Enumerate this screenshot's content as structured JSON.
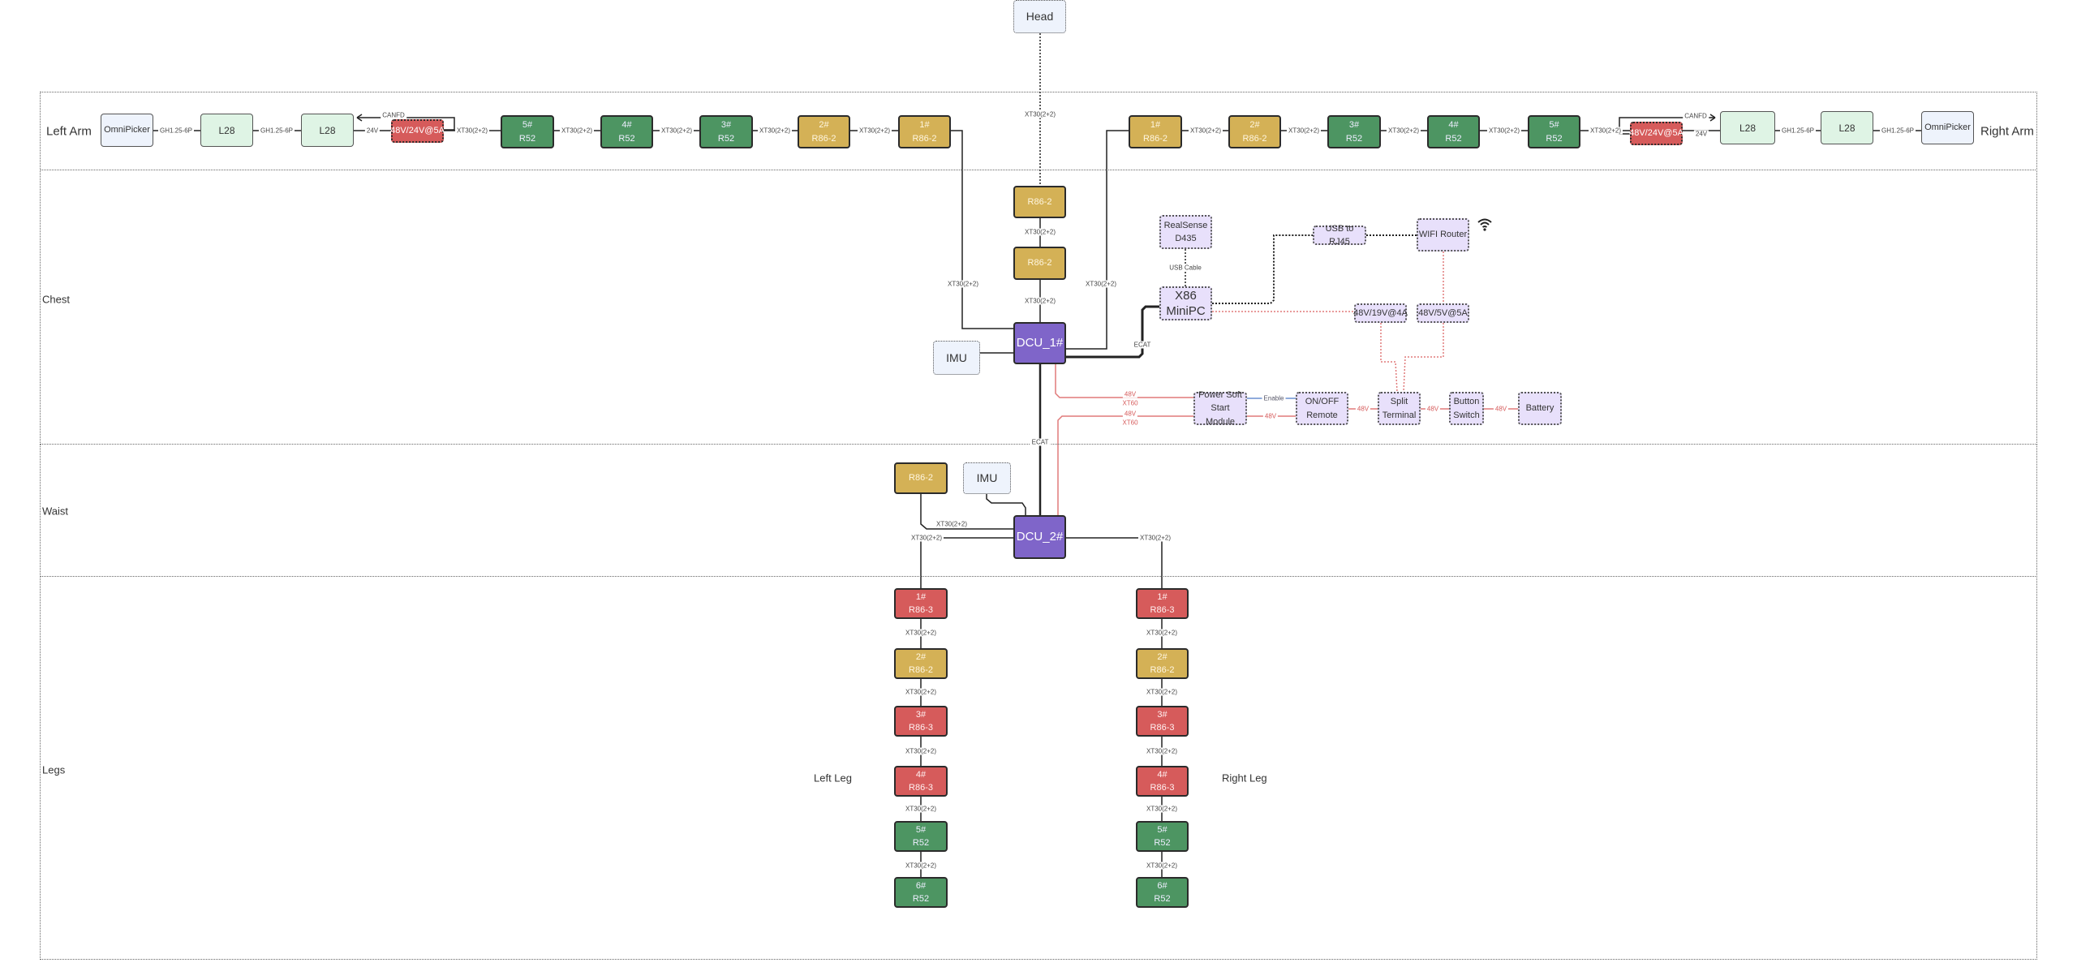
{
  "sections": [
    {
      "id": "arms",
      "label": "Left Arm",
      "label2": "Right Arm"
    },
    {
      "id": "chest",
      "label": "Chest"
    },
    {
      "id": "waist",
      "label": "Waist"
    },
    {
      "id": "legs",
      "label": "Legs",
      "label_left": "Left Leg",
      "label_right": "Right Leg"
    }
  ],
  "colors": {
    "r52_green": "#4d9562",
    "r86_2_gold": "#d4b156",
    "r86_3_red": "#d65b5b",
    "dcu_purple": "#7f65c9",
    "module_lilac": "#e8e0fb",
    "l28_green": "#dff4e5",
    "light_blue": "#eef3fc",
    "power_line": "#e07a7a",
    "signal_line": "#222222",
    "enable_line": "#6a8fd0"
  },
  "icons": {
    "wifi": "wifi-icon",
    "canfd_arrow": "arrow-icon"
  },
  "nodes": [
    {
      "id": "head",
      "lines": [
        "Head"
      ],
      "style": "lbluedot"
    },
    {
      "id": "la_omni",
      "lines": [
        "OmniPicker"
      ],
      "style": "lblue"
    },
    {
      "id": "la_l28a",
      "lines": [
        "L28"
      ],
      "style": "lgreen"
    },
    {
      "id": "la_l28b",
      "lines": [
        "L28"
      ],
      "style": "lgreen"
    },
    {
      "id": "la_pwr",
      "lines": [
        "48V/24V@5A"
      ],
      "style": "reddot"
    },
    {
      "id": "la_5",
      "lines": [
        "5#",
        "R52"
      ],
      "style": "green"
    },
    {
      "id": "la_4",
      "lines": [
        "4#",
        "R52"
      ],
      "style": "green"
    },
    {
      "id": "la_3",
      "lines": [
        "3#",
        "R52"
      ],
      "style": "green"
    },
    {
      "id": "la_2",
      "lines": [
        "2#",
        "R86-2"
      ],
      "style": "gold"
    },
    {
      "id": "la_1",
      "lines": [
        "1#",
        "R86-2"
      ],
      "style": "gold"
    },
    {
      "id": "ra_1",
      "lines": [
        "1#",
        "R86-2"
      ],
      "style": "gold"
    },
    {
      "id": "ra_2",
      "lines": [
        "2#",
        "R86-2"
      ],
      "style": "gold"
    },
    {
      "id": "ra_3",
      "lines": [
        "3#",
        "R52"
      ],
      "style": "green"
    },
    {
      "id": "ra_4",
      "lines": [
        "4#",
        "R52"
      ],
      "style": "green"
    },
    {
      "id": "ra_5",
      "lines": [
        "5#",
        "R52"
      ],
      "style": "green"
    },
    {
      "id": "ra_pwr",
      "lines": [
        "48V/24V@5A"
      ],
      "style": "reddot"
    },
    {
      "id": "ra_l28a",
      "lines": [
        "L28"
      ],
      "style": "lgreen"
    },
    {
      "id": "ra_l28b",
      "lines": [
        "L28"
      ],
      "style": "lgreen"
    },
    {
      "id": "ra_omni",
      "lines": [
        "OmniPicker"
      ],
      "style": "lblue"
    },
    {
      "id": "neck_1",
      "lines": [
        "R86-2"
      ],
      "style": "gold"
    },
    {
      "id": "neck_2",
      "lines": [
        "R86-2"
      ],
      "style": "gold"
    },
    {
      "id": "dcu1",
      "lines": [
        "DCU_1#"
      ],
      "style": "purple"
    },
    {
      "id": "imu1",
      "lines": [
        "IMU"
      ],
      "style": "lbluedot"
    },
    {
      "id": "realsense",
      "lines": [
        "RealSense",
        "D435"
      ],
      "style": "lilac"
    },
    {
      "id": "x86",
      "lines": [
        "X86",
        "MiniPC"
      ],
      "style": "lilacbig"
    },
    {
      "id": "usb_rj45",
      "lines": [
        "USB to RJ45"
      ],
      "style": "lilac"
    },
    {
      "id": "wifi_router",
      "lines": [
        "WIFI Router"
      ],
      "style": "lilac"
    },
    {
      "id": "dc_19v",
      "lines": [
        "48V/19V@4A"
      ],
      "style": "lilac"
    },
    {
      "id": "dc_5v",
      "lines": [
        "48V/5V@5A"
      ],
      "style": "lilac"
    },
    {
      "id": "softstart",
      "lines": [
        "Power Soft",
        "Start Module"
      ],
      "style": "lilac"
    },
    {
      "id": "onoff",
      "lines": [
        "ON/OFF",
        "Remote"
      ],
      "style": "lilac"
    },
    {
      "id": "split",
      "lines": [
        "Split",
        "Terminal"
      ],
      "style": "lilac"
    },
    {
      "id": "button",
      "lines": [
        "Button",
        "Switch"
      ],
      "style": "lilac"
    },
    {
      "id": "battery",
      "lines": [
        "Battery"
      ],
      "style": "lilac"
    },
    {
      "id": "waist_r86",
      "lines": [
        "R86-2"
      ],
      "style": "gold"
    },
    {
      "id": "imu2",
      "lines": [
        "IMU"
      ],
      "style": "lbluedot"
    },
    {
      "id": "dcu2",
      "lines": [
        "DCU_2#"
      ],
      "style": "purple"
    },
    {
      "id": "ll_1",
      "lines": [
        "1#",
        "R86-3"
      ],
      "style": "red"
    },
    {
      "id": "ll_2",
      "lines": [
        "2#",
        "R86-2"
      ],
      "style": "gold"
    },
    {
      "id": "ll_3",
      "lines": [
        "3#",
        "R86-3"
      ],
      "style": "red"
    },
    {
      "id": "ll_4",
      "lines": [
        "4#",
        "R86-3"
      ],
      "style": "red"
    },
    {
      "id": "ll_5",
      "lines": [
        "5#",
        "R52"
      ],
      "style": "green"
    },
    {
      "id": "ll_6",
      "lines": [
        "6#",
        "R52"
      ],
      "style": "green"
    },
    {
      "id": "rl_1",
      "lines": [
        "1#",
        "R86-3"
      ],
      "style": "red"
    },
    {
      "id": "rl_2",
      "lines": [
        "2#",
        "R86-2"
      ],
      "style": "gold"
    },
    {
      "id": "rl_3",
      "lines": [
        "3#",
        "R86-3"
      ],
      "style": "red"
    },
    {
      "id": "rl_4",
      "lines": [
        "4#",
        "R86-3"
      ],
      "style": "red"
    },
    {
      "id": "rl_5",
      "lines": [
        "5#",
        "R52"
      ],
      "style": "green"
    },
    {
      "id": "rl_6",
      "lines": [
        "6#",
        "R52"
      ],
      "style": "green"
    }
  ],
  "connector_labels": [
    {
      "text": "GH1.25-6P"
    },
    {
      "text": "GH1.25-6P"
    },
    {
      "text": "24V"
    },
    {
      "text": "CANFD"
    },
    {
      "text": "XT30(2+2)"
    },
    {
      "text": "XT30(2+2)"
    },
    {
      "text": "XT30(2+2)"
    },
    {
      "text": "XT30(2+2)"
    },
    {
      "text": "XT30(2+2)"
    },
    {
      "text": "XT30(2+2)"
    },
    {
      "text": "XT30(2+2)"
    },
    {
      "text": "XT30(2+2)"
    },
    {
      "text": "XT30(2+2)"
    },
    {
      "text": "XT30(2+2)"
    },
    {
      "text": "CANFD"
    },
    {
      "text": "24V"
    },
    {
      "text": "GH1.25-6P"
    },
    {
      "text": "GH1.25-6P"
    },
    {
      "text": "XT30(2+2)"
    },
    {
      "text": "XT30(2+2)"
    },
    {
      "text": "XT30(2+2)"
    },
    {
      "text": "XT30(2+2)"
    },
    {
      "text": "XT30(2+2)"
    },
    {
      "text": "USB Cable"
    },
    {
      "text": "ECAT"
    },
    {
      "text": "48V",
      "tone": "red"
    },
    {
      "text": "XT60",
      "tone": "red"
    },
    {
      "text": "48V",
      "tone": "red"
    },
    {
      "text": "XT60",
      "tone": "red"
    },
    {
      "text": "Enable",
      "tone": "blue"
    },
    {
      "text": "48V",
      "tone": "red"
    },
    {
      "text": "48V",
      "tone": "red"
    },
    {
      "text": "48V",
      "tone": "red"
    },
    {
      "text": "48V",
      "tone": "red"
    },
    {
      "text": "ECAT"
    },
    {
      "text": "XT30(2+2)"
    },
    {
      "text": "XT30(2+2)"
    },
    {
      "text": "XT30(2+2)"
    },
    {
      "text": "XT30(2+2)"
    },
    {
      "text": "XT30(2+2)"
    },
    {
      "text": "XT30(2+2)"
    },
    {
      "text": "XT30(2+2)"
    },
    {
      "text": "XT30(2+2)"
    },
    {
      "text": "XT30(2+2)"
    },
    {
      "text": "XT30(2+2)"
    },
    {
      "text": "XT30(2+2)"
    },
    {
      "text": "XT30(2+2)"
    },
    {
      "text": "XT30(2+2)"
    }
  ]
}
